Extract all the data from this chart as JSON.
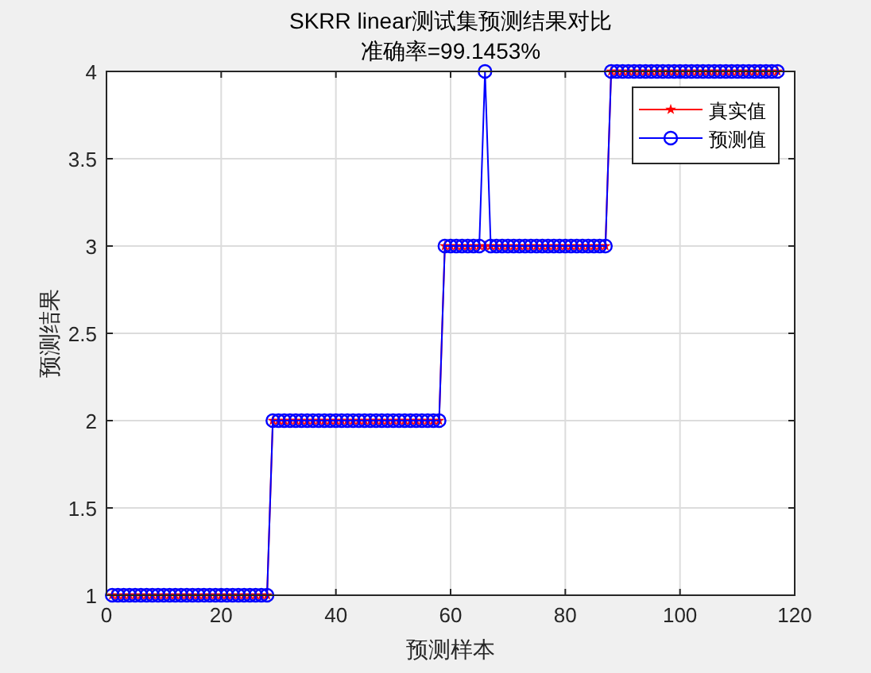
{
  "chart_data": {
    "type": "line",
    "title": "SKRR linear测试集预测结果对比",
    "subtitle": "准确率=99.1453%",
    "xlabel": "预测样本",
    "ylabel": "预测结果",
    "x": [
      1,
      2,
      3,
      4,
      5,
      6,
      7,
      8,
      9,
      10,
      11,
      12,
      13,
      14,
      15,
      16,
      17,
      18,
      19,
      20,
      21,
      22,
      23,
      24,
      25,
      26,
      27,
      28,
      29,
      30,
      31,
      32,
      33,
      34,
      35,
      36,
      37,
      38,
      39,
      40,
      41,
      42,
      43,
      44,
      45,
      46,
      47,
      48,
      49,
      50,
      51,
      52,
      53,
      54,
      55,
      56,
      57,
      58,
      59,
      60,
      61,
      62,
      63,
      64,
      65,
      66,
      67,
      68,
      69,
      70,
      71,
      72,
      73,
      74,
      75,
      76,
      77,
      78,
      79,
      80,
      81,
      82,
      83,
      84,
      85,
      86,
      87,
      88,
      89,
      90,
      91,
      92,
      93,
      94,
      95,
      96,
      97,
      98,
      99,
      100,
      101,
      102,
      103,
      104,
      105,
      106,
      107,
      108,
      109,
      110,
      111,
      112,
      113,
      114,
      115,
      116,
      117
    ],
    "series": [
      {
        "name": "真实值",
        "color": "#ff0000",
        "marker": "star",
        "values": [
          1,
          1,
          1,
          1,
          1,
          1,
          1,
          1,
          1,
          1,
          1,
          1,
          1,
          1,
          1,
          1,
          1,
          1,
          1,
          1,
          1,
          1,
          1,
          1,
          1,
          1,
          1,
          1,
          2,
          2,
          2,
          2,
          2,
          2,
          2,
          2,
          2,
          2,
          2,
          2,
          2,
          2,
          2,
          2,
          2,
          2,
          2,
          2,
          2,
          2,
          2,
          2,
          2,
          2,
          2,
          2,
          2,
          2,
          3,
          3,
          3,
          3,
          3,
          3,
          3,
          3,
          3,
          3,
          3,
          3,
          3,
          3,
          3,
          3,
          3,
          3,
          3,
          3,
          3,
          3,
          3,
          3,
          3,
          3,
          3,
          3,
          3,
          4,
          4,
          4,
          4,
          4,
          4,
          4,
          4,
          4,
          4,
          4,
          4,
          4,
          4,
          4,
          4,
          4,
          4,
          4,
          4,
          4,
          4,
          4,
          4,
          4,
          4,
          4,
          4,
          4,
          4
        ]
      },
      {
        "name": "预测值",
        "color": "#0000ff",
        "marker": "circle",
        "values": [
          1,
          1,
          1,
          1,
          1,
          1,
          1,
          1,
          1,
          1,
          1,
          1,
          1,
          1,
          1,
          1,
          1,
          1,
          1,
          1,
          1,
          1,
          1,
          1,
          1,
          1,
          1,
          1,
          2,
          2,
          2,
          2,
          2,
          2,
          2,
          2,
          2,
          2,
          2,
          2,
          2,
          2,
          2,
          2,
          2,
          2,
          2,
          2,
          2,
          2,
          2,
          2,
          2,
          2,
          2,
          2,
          2,
          2,
          3,
          3,
          3,
          3,
          3,
          3,
          3,
          4,
          3,
          3,
          3,
          3,
          3,
          3,
          3,
          3,
          3,
          3,
          3,
          3,
          3,
          3,
          3,
          3,
          3,
          3,
          3,
          3,
          3,
          4,
          4,
          4,
          4,
          4,
          4,
          4,
          4,
          4,
          4,
          4,
          4,
          4,
          4,
          4,
          4,
          4,
          4,
          4,
          4,
          4,
          4,
          4,
          4,
          4,
          4,
          4,
          4,
          4,
          4
        ]
      }
    ],
    "xlim": [
      0,
      120
    ],
    "xticks": [
      0,
      20,
      40,
      60,
      80,
      100,
      120
    ],
    "ylim": [
      1,
      4
    ],
    "yticks": [
      1,
      1.5,
      2,
      2.5,
      3,
      3.5,
      4
    ],
    "grid": true,
    "legend": "top right",
    "line_style": "solid"
  }
}
